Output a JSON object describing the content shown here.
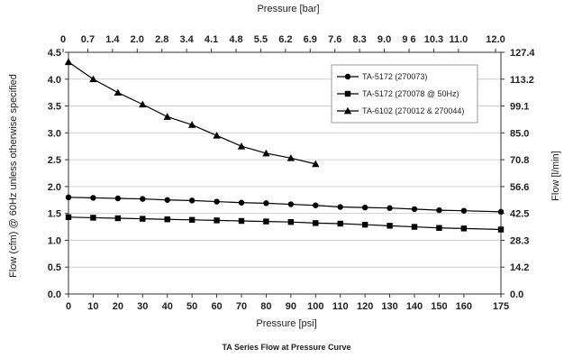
{
  "chart_data": {
    "type": "line",
    "caption": "TA Series Flow at Pressure Curve",
    "xlabel": "Pressure [psi]",
    "x2label": "Pressure [bar]",
    "ylabel": "Flow (cfm) @ 60Hz unless otherwise specified",
    "y2label": "Flow [l/min]",
    "xlim": [
      0,
      175
    ],
    "ylim": [
      0,
      4.5
    ],
    "x_ticks": [
      0,
      10,
      20,
      30,
      40,
      50,
      60,
      70,
      80,
      90,
      100,
      110,
      120,
      130,
      140,
      150,
      160,
      175
    ],
    "y_ticks": [
      "0.0",
      "0.5",
      "1.0",
      "1.5",
      "2.0",
      "2.5",
      "3.0",
      "3.5",
      "4.0",
      "4.5"
    ],
    "x2_ticks": [
      "0",
      "0.7",
      "1.4",
      "2.0",
      "2.8",
      "3.4",
      "4.1",
      "4.8",
      "5.5",
      "6.2",
      "6.9",
      "7.6",
      "8.3",
      "9.0",
      "9 6",
      "10.3",
      "11.0",
      "12.0"
    ],
    "y2_ticks": [
      "0.0",
      "14.2",
      "28.3",
      "42.5",
      "56.6",
      "70.8",
      "85.0",
      "99.1",
      "113.2",
      "127.4"
    ],
    "gridlines": "horizontal",
    "legend_position": "top-right",
    "series": [
      {
        "name": "TA-5172 (270073)",
        "marker": "circle",
        "x": [
          0,
          10,
          20,
          30,
          40,
          50,
          60,
          70,
          80,
          90,
          100,
          110,
          120,
          130,
          140,
          150,
          160,
          175
        ],
        "values": [
          1.8,
          1.79,
          1.78,
          1.77,
          1.75,
          1.74,
          1.72,
          1.7,
          1.69,
          1.67,
          1.65,
          1.62,
          1.61,
          1.6,
          1.58,
          1.56,
          1.55,
          1.53
        ]
      },
      {
        "name": "TA-5172 (270078 @ 50Hz)",
        "marker": "square",
        "x": [
          0,
          10,
          20,
          30,
          40,
          50,
          60,
          70,
          80,
          90,
          100,
          110,
          120,
          130,
          140,
          150,
          160,
          175
        ],
        "values": [
          1.43,
          1.42,
          1.41,
          1.4,
          1.39,
          1.38,
          1.37,
          1.36,
          1.35,
          1.34,
          1.32,
          1.31,
          1.29,
          1.27,
          1.25,
          1.23,
          1.22,
          1.2
        ]
      },
      {
        "name": "TA-6102 (270012 & 270044)",
        "marker": "triangle",
        "x": [
          0,
          10,
          20,
          30,
          40,
          50,
          60,
          70,
          80,
          90,
          100
        ],
        "values": [
          4.32,
          4.0,
          3.75,
          3.53,
          3.3,
          3.15,
          2.95,
          2.75,
          2.62,
          2.53,
          2.42
        ]
      }
    ]
  }
}
